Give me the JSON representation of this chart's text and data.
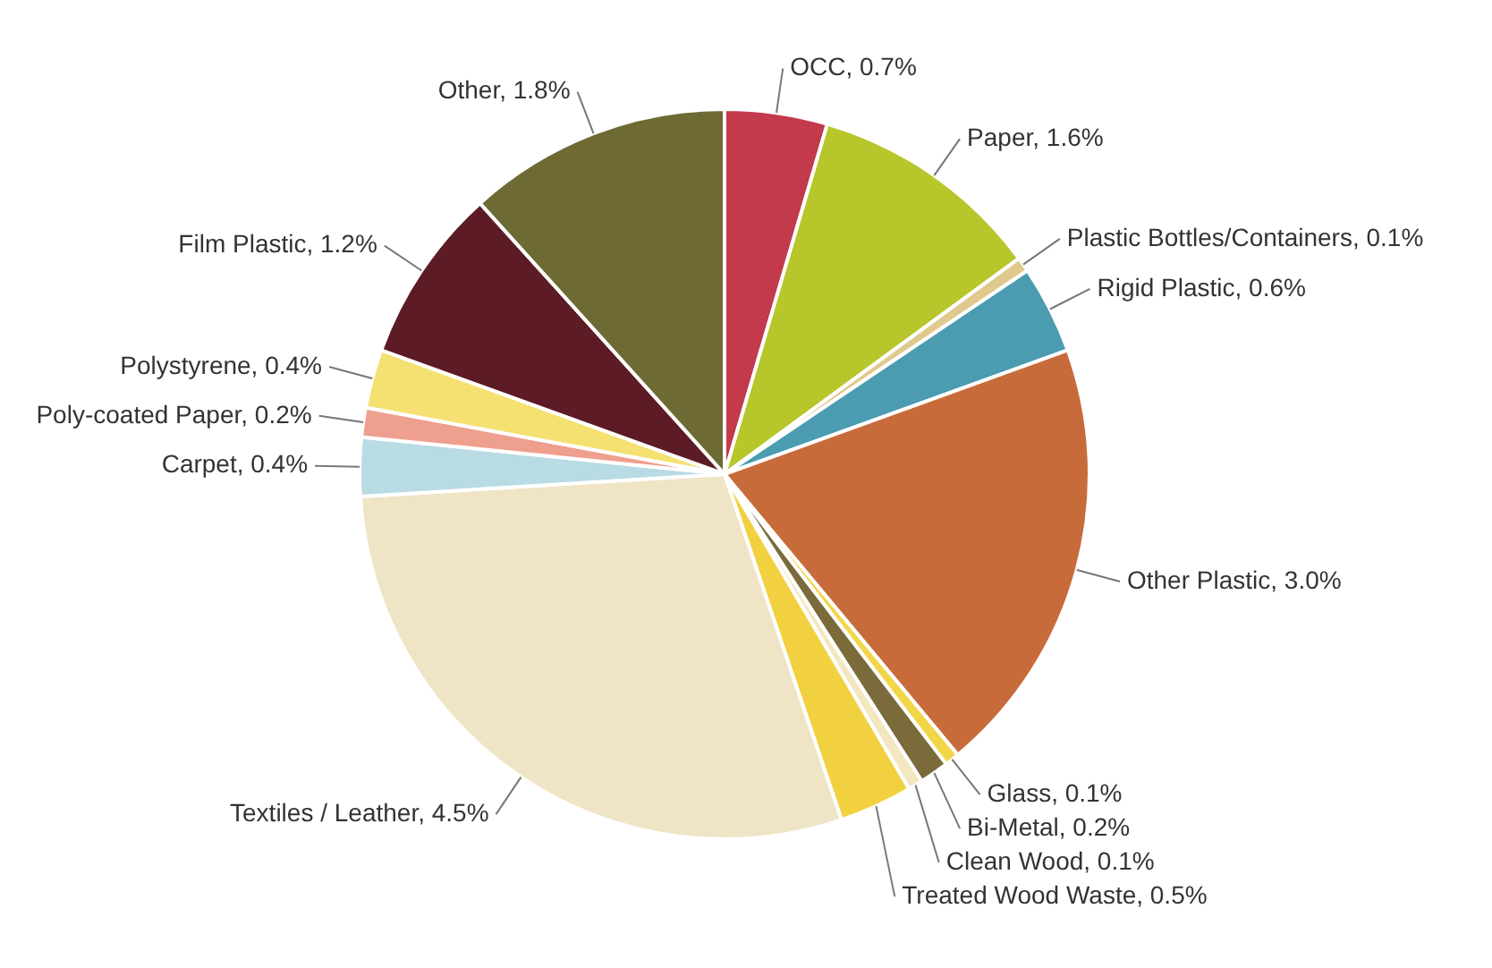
{
  "chart_data": {
    "type": "pie",
    "categories": [
      "OCC",
      "Paper",
      "Plastic Bottles/Containers",
      "Rigid Plastic",
      "Other Plastic",
      "Glass",
      "Bi-Metal",
      "Clean Wood",
      "Treated Wood Waste",
      "Textiles / Leather",
      "Carpet",
      "Poly-coated Paper",
      "Polystyrene",
      "Film Plastic",
      "Other"
    ],
    "values": [
      0.7,
      1.6,
      0.1,
      0.6,
      3.0,
      0.1,
      0.2,
      0.1,
      0.5,
      4.5,
      0.4,
      0.2,
      0.4,
      1.2,
      1.8
    ],
    "value_labels": [
      "0.7%",
      "1.6%",
      "0.1%",
      "0.6%",
      "3.0%",
      "0.1%",
      "0.2%",
      "0.1%",
      "0.5%",
      "4.5%",
      "0.4%",
      "0.2%",
      "0.4%",
      "1.2%",
      "1.8%"
    ],
    "colors": [
      "#c23a4c",
      "#b7c62a",
      "#dfc98c",
      "#4b9cb1",
      "#c86b3b",
      "#f2d64a",
      "#7b6b3b",
      "#f3e7bf",
      "#f1d13f",
      "#efe5c6",
      "#b9dbe3",
      "#ef9f8e",
      "#f5e172",
      "#5d1b26",
      "#6e6a33"
    ],
    "legend": false
  }
}
